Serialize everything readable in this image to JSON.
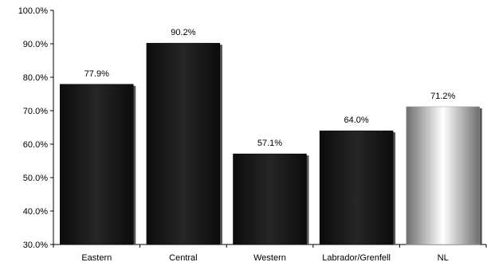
{
  "chart_data": {
    "type": "bar",
    "categories": [
      "Eastern",
      "Central",
      "Western",
      "Labrador/Grenfell",
      "NL"
    ],
    "values": [
      77.9,
      90.2,
      57.1,
      64.0,
      71.2
    ],
    "value_labels": [
      "77.9%",
      "90.2%",
      "57.1%",
      "64.0%",
      "71.2%"
    ],
    "ylim": [
      30,
      100
    ],
    "yticks": [
      30,
      40,
      50,
      60,
      70,
      80,
      90,
      100
    ],
    "ytick_labels": [
      "30.0%",
      "40.0%",
      "50.0%",
      "60.0%",
      "70.0%",
      "80.0%",
      "90.0%",
      "100.0%"
    ],
    "grid": false,
    "legend": "none",
    "title": "",
    "xlabel": "",
    "ylabel": "",
    "bar_colors": [
      "#1a1a1a",
      "#1a1a1a",
      "#1a1a1a",
      "#1a1a1a",
      "gradient-silver"
    ]
  },
  "colors": {
    "dark_bar": "#1a1a1a",
    "dark_bar_edge": "#000000",
    "silver_light": "#ffffff",
    "silver_dark": "#7a7a7a",
    "axis": "#000000"
  }
}
